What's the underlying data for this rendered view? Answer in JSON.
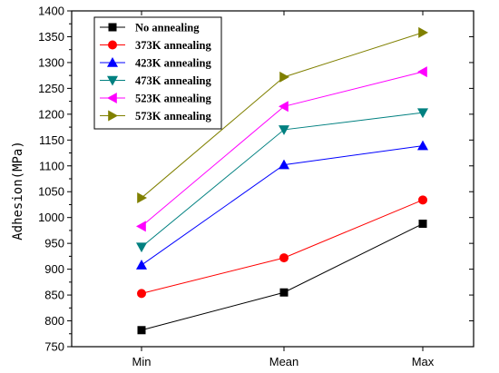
{
  "chart_data": {
    "type": "line",
    "categories": [
      "Min",
      "Mean",
      "Max"
    ],
    "ylabel": "Adhesion(MPa)",
    "ylim": [
      750,
      1400
    ],
    "yticks": [
      750,
      800,
      850,
      900,
      950,
      1000,
      1050,
      1100,
      1150,
      1200,
      1250,
      1300,
      1350,
      1400
    ],
    "legend_position": "top-left",
    "grid": false,
    "series": [
      {
        "name": "No annealing",
        "values": [
          782,
          855,
          988
        ],
        "color": "#000000",
        "marker": "square"
      },
      {
        "name": "373K annealing",
        "values": [
          853,
          922,
          1034
        ],
        "color": "#ff0000",
        "marker": "circle"
      },
      {
        "name": "423K annealing",
        "values": [
          908,
          1102,
          1139
        ],
        "color": "#0000ff",
        "marker": "triangle-up"
      },
      {
        "name": "473K annealing",
        "values": [
          943,
          1170,
          1203
        ],
        "color": "#008080",
        "marker": "triangle-down"
      },
      {
        "name": "523K annealing",
        "values": [
          983,
          1215,
          1282
        ],
        "color": "#ff00ff",
        "marker": "triangle-left"
      },
      {
        "name": "573K annealing",
        "values": [
          1038,
          1272,
          1358
        ],
        "color": "#808000",
        "marker": "triangle-right"
      }
    ]
  }
}
